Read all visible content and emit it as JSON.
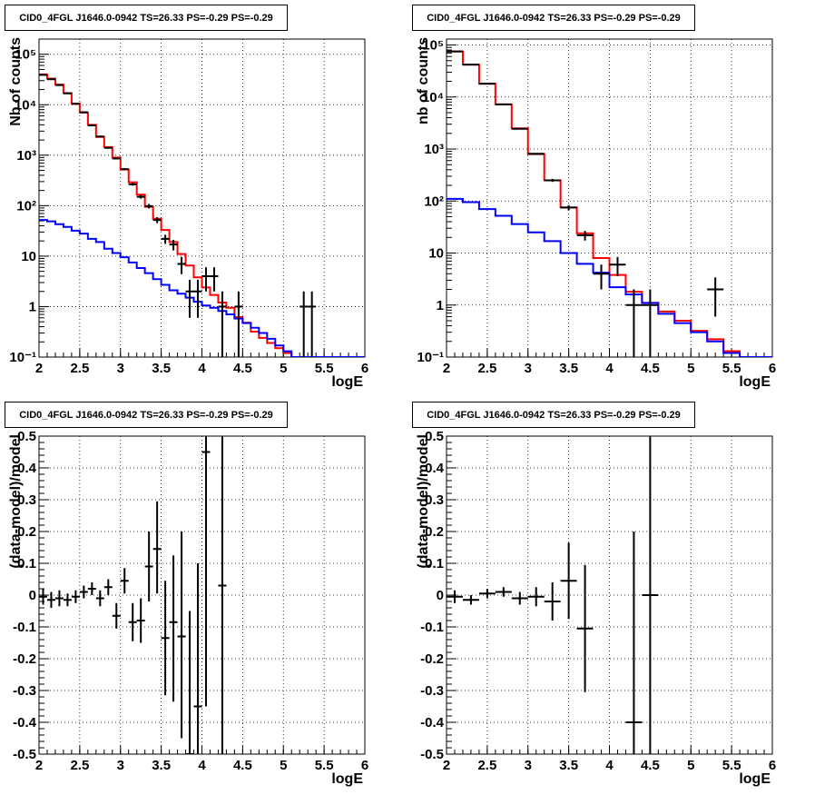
{
  "colors": {
    "data": "#000000",
    "total_model": "#ff0000",
    "component_model": "#0000ff"
  },
  "chart_data": [
    {
      "type": "line",
      "title": "CID0_4FGL J1646.0-0942 TS=26.33 PS=-0.29 PS=-0.29",
      "xlabel": "logE",
      "ylabel": "Nb of counts",
      "xlim": [
        2,
        6
      ],
      "ylim": [
        0.1,
        200000
      ],
      "yscale": "log",
      "grid": true,
      "xticks": [
        2,
        2.5,
        3,
        3.5,
        4,
        4.5,
        5,
        5.5,
        6
      ],
      "xtick_labels": [
        "2",
        "2.5",
        "3",
        "3.5",
        "4",
        "4.5",
        "5",
        "5.5",
        "6"
      ],
      "yticks": [
        0.1,
        1,
        10,
        100,
        1000,
        10000,
        100000
      ],
      "ytick_labels": [
        "10⁻¹",
        "1",
        "10",
        "10²",
        "10³",
        "10⁴",
        "10⁵"
      ],
      "bin_width": 0.1,
      "series": [
        {
          "style": "step",
          "color": "#ff0000",
          "x": [
            2.0,
            2.1,
            2.2,
            2.3,
            2.4,
            2.5,
            2.6,
            2.7,
            2.8,
            2.9,
            3.0,
            3.1,
            3.2,
            3.3,
            3.4,
            3.5,
            3.6,
            3.7,
            3.8,
            3.9,
            4.0,
            4.1,
            4.2,
            4.3,
            4.4,
            4.5,
            4.6,
            4.7,
            4.8,
            4.9,
            5.0,
            5.1,
            5.2,
            5.3,
            5.4,
            5.5,
            5.6,
            5.7,
            5.8,
            5.9
          ],
          "values": [
            40000,
            33000,
            25000,
            17000,
            10500,
            7000,
            4000,
            2300,
            1450,
            900,
            520,
            290,
            165,
            95,
            55,
            33,
            19,
            11,
            6.5,
            3.8,
            2.4,
            1.7,
            1.2,
            0.95,
            0.62,
            0.48,
            0.32,
            0.24,
            0.19,
            0.15,
            0.12,
            0.1,
            0.1,
            0.1,
            0.1,
            0.1,
            0.1,
            0.1,
            0.1,
            0.1
          ]
        },
        {
          "style": "step",
          "color": "#0000ff",
          "x": [
            2.0,
            2.1,
            2.2,
            2.3,
            2.4,
            2.5,
            2.6,
            2.7,
            2.8,
            2.9,
            3.0,
            3.1,
            3.2,
            3.3,
            3.4,
            3.5,
            3.6,
            3.7,
            3.8,
            3.9,
            4.0,
            4.1,
            4.2,
            4.3,
            4.4,
            4.5,
            4.6,
            4.7,
            4.8,
            4.9,
            5.0,
            5.1,
            5.2,
            5.3,
            5.4,
            5.5,
            5.6,
            5.7,
            5.8,
            5.9
          ],
          "values": [
            52,
            49,
            43,
            38,
            32,
            28,
            22,
            19,
            14,
            11.5,
            9.5,
            7.5,
            5.8,
            4.6,
            3.5,
            2.7,
            2.1,
            1.8,
            1.5,
            1.25,
            1.05,
            0.95,
            0.82,
            0.7,
            0.58,
            0.47,
            0.38,
            0.3,
            0.23,
            0.17,
            0.13,
            0.1,
            0.1,
            0.1,
            0.1,
            0.1,
            0.1,
            0.1,
            0.1,
            0.1
          ]
        },
        {
          "style": "errorbar",
          "color": "#000000",
          "x": [
            2.05,
            2.15,
            2.25,
            2.35,
            2.45,
            2.55,
            2.65,
            2.75,
            2.85,
            2.95,
            3.05,
            3.15,
            3.25,
            3.35,
            3.45,
            3.55,
            3.65,
            3.75,
            3.85,
            3.95,
            4.05,
            4.15,
            4.25,
            4.45,
            5.25,
            5.35
          ],
          "values": [
            39000,
            32000,
            24500,
            16800,
            10400,
            7100,
            3900,
            2350,
            1400,
            860,
            530,
            265,
            150,
            98,
            52,
            22,
            17,
            7,
            2,
            2,
            4,
            4,
            1,
            1,
            1,
            1
          ],
          "err_low": [
            200,
            180,
            160,
            130,
            100,
            85,
            62,
            48,
            37,
            29,
            23,
            16,
            12,
            10,
            7,
            4.5,
            4,
            2.6,
            1.4,
            1.4,
            2,
            2,
            0.9,
            0.9,
            0.9,
            0.9
          ],
          "err_high": [
            200,
            180,
            160,
            130,
            100,
            85,
            62,
            48,
            37,
            29,
            23,
            16,
            12,
            10,
            7,
            4.5,
            4,
            2.6,
            1.4,
            1.4,
            2,
            2,
            1,
            1,
            1,
            1
          ]
        }
      ]
    },
    {
      "type": "line",
      "title": "CID0_4FGL J1646.0-0942 TS=26.33 PS=-0.29 PS=-0.29",
      "xlabel": "logE",
      "ylabel": "nb of counts",
      "xlim": [
        2,
        6
      ],
      "ylim": [
        0.1,
        130000
      ],
      "yscale": "log",
      "grid": true,
      "xticks": [
        2,
        2.5,
        3,
        3.5,
        4,
        4.5,
        5,
        5.5,
        6
      ],
      "xtick_labels": [
        "2",
        "2.5",
        "3",
        "3.5",
        "4",
        "4.5",
        "5",
        "5.5",
        "6"
      ],
      "yticks": [
        0.1,
        1,
        10,
        100,
        1000,
        10000,
        100000
      ],
      "ytick_labels": [
        "10⁻¹",
        "1",
        "10",
        "10²",
        "10³",
        "10⁴",
        "10⁵"
      ],
      "bin_width": 0.2,
      "series": [
        {
          "style": "step",
          "color": "#ff0000",
          "x": [
            2.0,
            2.2,
            2.4,
            2.6,
            2.8,
            3.0,
            3.2,
            3.4,
            3.6,
            3.8,
            4.0,
            4.2,
            4.4,
            4.6,
            4.8,
            5.0,
            5.2,
            5.4,
            5.6,
            5.8
          ],
          "values": [
            75000,
            42000,
            18000,
            7200,
            2500,
            800,
            250,
            75,
            24,
            8,
            3.8,
            1.8,
            1.1,
            0.75,
            0.5,
            0.32,
            0.22,
            0.13,
            0.1,
            0.1
          ]
        },
        {
          "style": "step",
          "color": "#0000ff",
          "x": [
            2.0,
            2.2,
            2.4,
            2.6,
            2.8,
            3.0,
            3.2,
            3.4,
            3.6,
            3.8,
            4.0,
            4.2,
            4.4,
            4.6,
            4.8,
            5.0,
            5.2,
            5.4,
            5.6,
            5.8
          ],
          "values": [
            110,
            95,
            70,
            52,
            36,
            25,
            17,
            10,
            6.2,
            4.2,
            2.2,
            1.6,
            1.1,
            0.68,
            0.45,
            0.3,
            0.2,
            0.12,
            0.1,
            0.1
          ]
        },
        {
          "style": "errorbar",
          "color": "#000000",
          "x": [
            2.1,
            2.3,
            2.5,
            2.7,
            2.9,
            3.1,
            3.3,
            3.5,
            3.7,
            3.9,
            4.1,
            4.3,
            4.5,
            5.3
          ],
          "values": [
            75000,
            42000,
            18000,
            7200,
            2450,
            810,
            250,
            75,
            22,
            4,
            6,
            1,
            1,
            2
          ],
          "err_low": [
            270,
            200,
            130,
            85,
            50,
            28,
            16,
            8.5,
            4.6,
            2,
            2.4,
            0.9,
            0.9,
            1.4
          ],
          "err_high": [
            270,
            200,
            130,
            85,
            50,
            28,
            16,
            8.5,
            4.6,
            2,
            2.4,
            1,
            1,
            1.4
          ]
        }
      ]
    },
    {
      "type": "scatter",
      "title": "CID0_4FGL J1646.0-0942 TS=26.33 PS=-0.29 PS=-0.29",
      "xlabel": "logE",
      "ylabel": "(data-model)/model",
      "xlim": [
        2,
        6
      ],
      "ylim": [
        -0.5,
        0.5
      ],
      "yscale": "linear",
      "grid": true,
      "xticks": [
        2,
        2.5,
        3,
        3.5,
        4,
        4.5,
        5,
        5.5,
        6
      ],
      "xtick_labels": [
        "2",
        "2.5",
        "3",
        "3.5",
        "4",
        "4.5",
        "5",
        "5.5",
        "6"
      ],
      "yticks": [
        -0.5,
        -0.4,
        -0.3,
        -0.2,
        -0.1,
        0,
        0.1,
        0.2,
        0.3,
        0.4,
        0.5
      ],
      "ytick_labels": [
        "-0.5",
        "-0.4",
        "-0.3",
        "-0.2",
        "-0.1",
        "0",
        "0.1",
        "0.2",
        "0.3",
        "0.4",
        "0.5"
      ],
      "bin_width": 0.1,
      "series": [
        {
          "style": "errorbar",
          "color": "#000000",
          "x": [
            2.05,
            2.15,
            2.25,
            2.35,
            2.45,
            2.55,
            2.65,
            2.75,
            2.85,
            2.95,
            3.05,
            3.15,
            3.25,
            3.35,
            3.45,
            3.55,
            3.65,
            3.75,
            3.85,
            3.95,
            4.05,
            4.25
          ],
          "values": [
            -0.005,
            -0.015,
            -0.01,
            -0.015,
            -0.005,
            0.01,
            0.02,
            -0.01,
            0.025,
            -0.065,
            0.045,
            -0.085,
            -0.08,
            0.09,
            0.145,
            -0.135,
            -0.085,
            -0.13,
            -0.55,
            -0.35,
            0.45,
            0.03
          ],
          "err_low": [
            0.025,
            0.025,
            0.025,
            0.02,
            0.02,
            0.02,
            0.02,
            0.025,
            0.025,
            0.04,
            0.04,
            0.06,
            0.07,
            0.11,
            0.14,
            0.18,
            0.25,
            0.32,
            0.5,
            0.45,
            0.8,
            0.6
          ],
          "err_high": [
            0.025,
            0.025,
            0.025,
            0.02,
            0.02,
            0.02,
            0.02,
            0.025,
            0.025,
            0.04,
            0.04,
            0.06,
            0.07,
            0.11,
            0.15,
            0.18,
            0.21,
            0.33,
            0.5,
            0.45,
            0.8,
            0.6
          ]
        }
      ]
    },
    {
      "type": "scatter",
      "title": "CID0_4FGL J1646.0-0942 TS=26.33 PS=-0.29 PS=-0.29",
      "xlabel": "logE",
      "ylabel": "(data-model)/model",
      "xlim": [
        2,
        6
      ],
      "ylim": [
        -0.5,
        0.5
      ],
      "yscale": "linear",
      "grid": true,
      "xticks": [
        2,
        2.5,
        3,
        3.5,
        4,
        4.5,
        5,
        5.5,
        6
      ],
      "xtick_labels": [
        "2",
        "2.5",
        "3",
        "3.5",
        "4",
        "4.5",
        "5",
        "5.5",
        "6"
      ],
      "yticks": [
        -0.5,
        -0.4,
        -0.3,
        -0.2,
        -0.1,
        0,
        0.1,
        0.2,
        0.3,
        0.4,
        0.5
      ],
      "ytick_labels": [
        "-0.5",
        "-0.4",
        "-0.3",
        "-0.2",
        "-0.1",
        "0",
        "0.1",
        "0.2",
        "0.3",
        "0.4",
        "0.5"
      ],
      "bin_width": 0.2,
      "series": [
        {
          "style": "errorbar",
          "color": "#000000",
          "x": [
            2.1,
            2.3,
            2.5,
            2.7,
            2.9,
            3.1,
            3.3,
            3.5,
            3.7,
            4.3,
            4.5
          ],
          "values": [
            -0.005,
            -0.015,
            0.005,
            0.01,
            -0.01,
            -0.005,
            -0.02,
            0.045,
            -0.105,
            -0.4,
            0
          ],
          "err_low": [
            0.02,
            0.015,
            0.015,
            0.015,
            0.02,
            0.03,
            0.06,
            0.12,
            0.2,
            0.6,
            0.9
          ],
          "err_high": [
            0.02,
            0.015,
            0.015,
            0.015,
            0.02,
            0.03,
            0.06,
            0.12,
            0.2,
            0.6,
            0.9
          ]
        }
      ]
    }
  ]
}
